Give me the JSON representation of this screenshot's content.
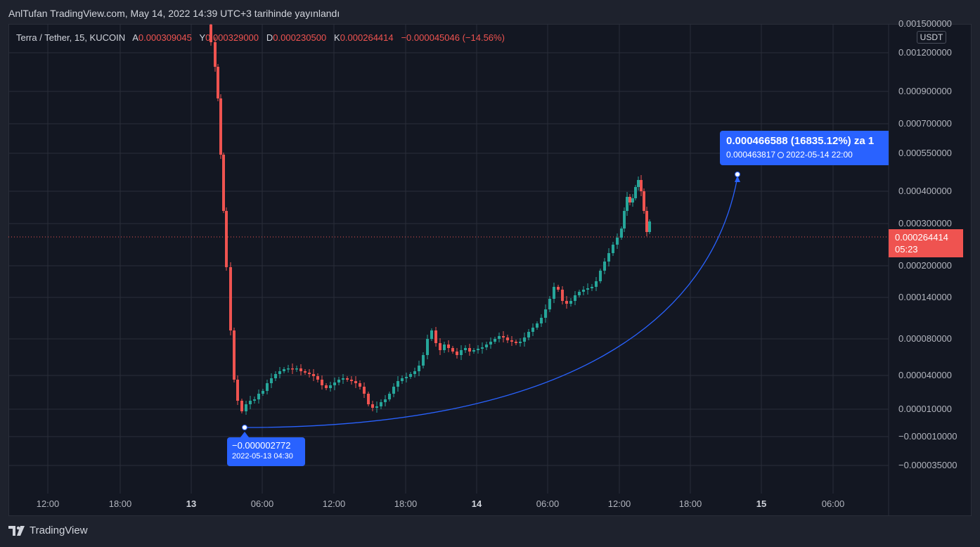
{
  "header": {
    "published_text": "AnlTufan TradingView.com, May 14, 2022 14:39 UTC+3 tarihinde yayınlandı"
  },
  "legend": {
    "symbol": "Terra / Tether, 15, KUCOIN",
    "a_label": "A",
    "a_value": "0.000309045",
    "y_label": "Y",
    "y_value": "0.000329000",
    "d_label": "D",
    "d_value": "0.000230500",
    "k_label": "K",
    "k_value": "0.000264414",
    "change": "−0.000045046 (−14.56%)"
  },
  "currency_badge": "USDT",
  "current_price": {
    "value": "0.000264414",
    "countdown": "05:23"
  },
  "callouts": {
    "target": {
      "headline": "0.000466588 (16835.12%) za 1",
      "price": "0.000463817",
      "datetime": "2022-05-14  22:00"
    },
    "origin": {
      "price": "−0.000002772",
      "datetime": "2022-05-13 04:30"
    }
  },
  "footer": {
    "brand": "TradingView"
  },
  "colors": {
    "background": "#131722",
    "up": "#26a69a",
    "down": "#ef5350",
    "accent": "#2962ff",
    "grid": "#2a2e39"
  },
  "chart_data": {
    "type": "candlestick",
    "y_scale": "log-like (price axis)",
    "ylim": [
      -3.5e-05,
      0.0015
    ],
    "y_ticks": [
      "0.001500000",
      "0.001200000",
      "0.000900000",
      "0.000700000",
      "0.000550000",
      "0.000400000",
      "0.000300000",
      "0.000200000",
      "0.000140000",
      "0.000080000",
      "0.000040000",
      "0.000010000",
      "−0.000010000",
      "−0.000035000"
    ],
    "x_ticks": [
      {
        "label": "12:00",
        "bold": false
      },
      {
        "label": "18:00",
        "bold": false
      },
      {
        "label": "13",
        "bold": true
      },
      {
        "label": "06:00",
        "bold": false
      },
      {
        "label": "12:00",
        "bold": false
      },
      {
        "label": "18:00",
        "bold": false
      },
      {
        "label": "14",
        "bold": true
      },
      {
        "label": "06:00",
        "bold": false
      },
      {
        "label": "12:00",
        "bold": false
      },
      {
        "label": "18:00",
        "bold": false
      },
      {
        "label": "15",
        "bold": true
      },
      {
        "label": "06:00",
        "bold": false
      }
    ],
    "current_price": 0.000264414,
    "projection": {
      "from": {
        "datetime": "2022-05-13 04:30",
        "price": -2.772e-06
      },
      "to": {
        "datetime": "2022-05-14 22:00",
        "price": 0.000463817
      }
    }
  }
}
